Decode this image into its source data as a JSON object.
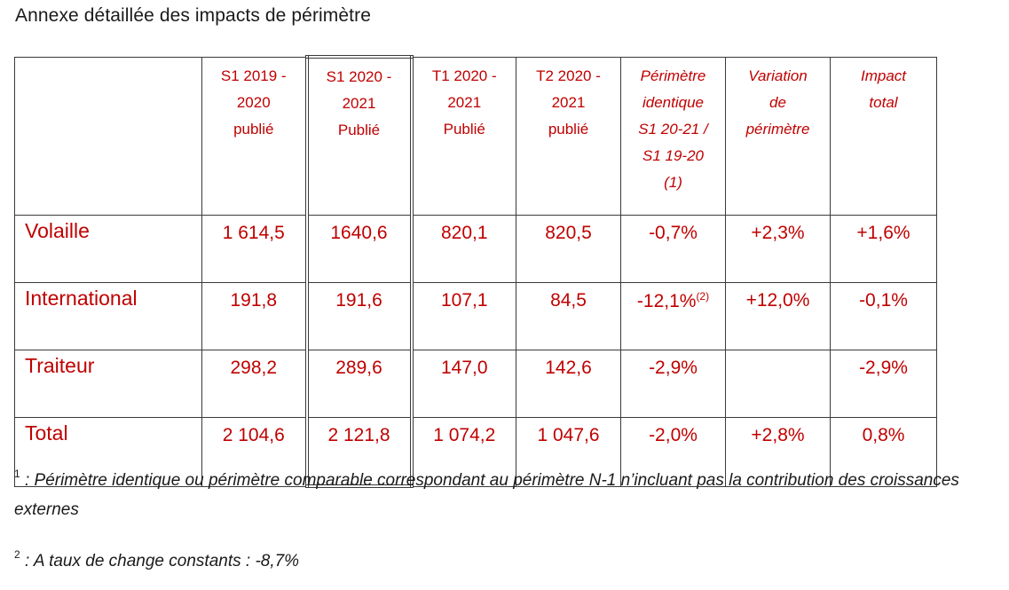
{
  "title": "Annexe détaillée des impacts de périmètre",
  "table": {
    "headers": [
      "",
      "S1 2019 - 2020 publié",
      "S1 2020 - 2021 Publié",
      "T1 2020 - 2021 Publié",
      "T2 2020 - 2021 publié",
      "Périmètre identique S1 20-21 / S1 19-20 (1)",
      "Variation de périmètre",
      "Impact total"
    ],
    "header_lines": [
      [
        "S1 2019 -",
        "2020",
        "publié"
      ],
      [
        "S1 2020 -",
        "2021",
        "Publié"
      ],
      [
        "T1 2020 -",
        "2021",
        "Publié"
      ],
      [
        "T2 2020 -",
        "2021",
        "publié"
      ],
      [
        "Périmètre",
        "identique",
        "S1 20-21 /",
        "S1 19-20",
        "(1)"
      ],
      [
        "Variation",
        "de",
        "périmètre"
      ],
      [
        "Impact",
        "total"
      ]
    ],
    "rows": [
      {
        "label": "Volaille",
        "values": [
          "1 614,5",
          "1640,6",
          "820,1",
          "820,5",
          "-0,7%",
          "+2,3%",
          "+1,6%"
        ]
      },
      {
        "label": "International",
        "values": [
          "191,8",
          "191,6",
          "107,1",
          "84,5",
          "-12,1%",
          "+12,0%",
          "-0,1%"
        ],
        "note_ref": "(2)"
      },
      {
        "label": "Traiteur",
        "values": [
          "298,2",
          "289,6",
          "147,0",
          "142,6",
          "-2,9%",
          "",
          "-2,9%"
        ]
      },
      {
        "label": "Total",
        "values": [
          "2 104,6",
          "2 121,8",
          "1 074,2",
          "1 047,6",
          "-2,0%",
          "+2,8%",
          "0,8%"
        ]
      }
    ]
  },
  "footnotes": {
    "note1_mark": "1",
    "note1_text": " : Périmètre identique ou périmètre comparable correspondant au périmètre N-1 n’incluant pas la contribution des croissances externes",
    "note2_mark": "2",
    "note2_text": " : A taux de change constants : -8,7%"
  },
  "colors": {
    "accent": "#c00000",
    "text": "#1a1a1a",
    "border": "#3a3a3a"
  }
}
